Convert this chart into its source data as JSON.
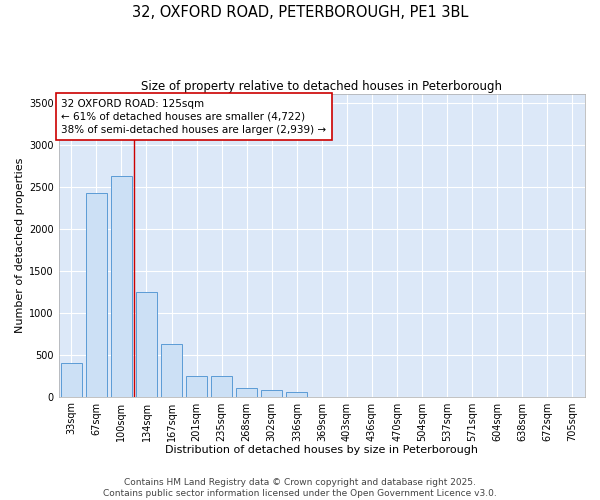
{
  "title_line1": "32, OXFORD ROAD, PETERBOROUGH, PE1 3BL",
  "title_line2": "Size of property relative to detached houses in Peterborough",
  "xlabel": "Distribution of detached houses by size in Peterborough",
  "ylabel": "Number of detached properties",
  "categories": [
    "33sqm",
    "67sqm",
    "100sqm",
    "134sqm",
    "167sqm",
    "201sqm",
    "235sqm",
    "268sqm",
    "302sqm",
    "336sqm",
    "369sqm",
    "403sqm",
    "436sqm",
    "470sqm",
    "504sqm",
    "537sqm",
    "571sqm",
    "604sqm",
    "638sqm",
    "672sqm",
    "705sqm"
  ],
  "values": [
    400,
    2420,
    2620,
    1250,
    625,
    250,
    245,
    100,
    80,
    50,
    0,
    0,
    0,
    0,
    0,
    0,
    0,
    0,
    0,
    0,
    0
  ],
  "bar_color": "#cce0f5",
  "bar_edge_color": "#5b9bd5",
  "vline_x_idx": 2,
  "vline_color": "#cc0000",
  "annotation_text_line1": "32 OXFORD ROAD: 125sqm",
  "annotation_text_line2": "← 61% of detached houses are smaller (4,722)",
  "annotation_text_line3": "38% of semi-detached houses are larger (2,939) →",
  "annotation_box_color": "#ffffff",
  "annotation_box_edge_color": "#cc0000",
  "ylim": [
    0,
    3600
  ],
  "yticks": [
    0,
    500,
    1000,
    1500,
    2000,
    2500,
    3000,
    3500
  ],
  "plot_bg_color": "#dce8f8",
  "figure_bg_color": "#ffffff",
  "grid_color": "#ffffff",
  "footer_line1": "Contains HM Land Registry data © Crown copyright and database right 2025.",
  "footer_line2": "Contains public sector information licensed under the Open Government Licence v3.0.",
  "title_fontsize": 10.5,
  "subtitle_fontsize": 8.5,
  "axis_label_fontsize": 8,
  "tick_fontsize": 7,
  "annotation_fontsize": 7.5,
  "footer_fontsize": 6.5
}
